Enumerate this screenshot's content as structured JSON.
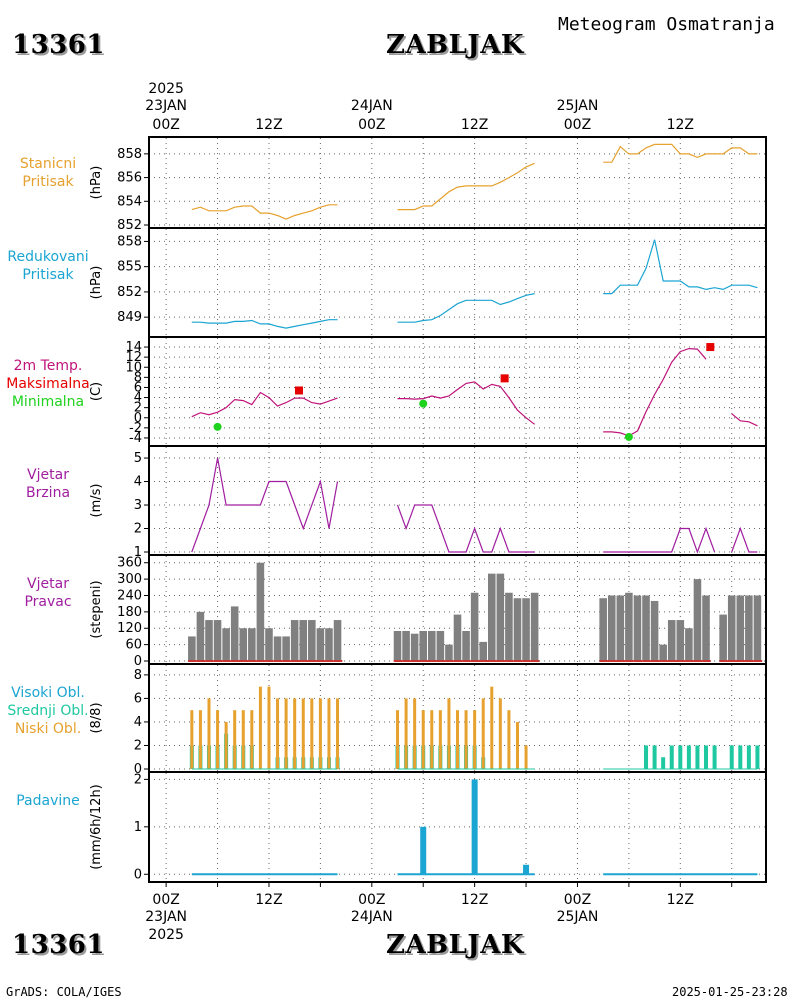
{
  "header": {
    "station_id": "13361",
    "station_name": "ZABLJAK",
    "subtitle": "Meteogram Osmatranja"
  },
  "footer": {
    "credit": "GrADS: COLA/IGES",
    "timestamp": "2025-01-25-23:28"
  },
  "time_axis": {
    "year": "2025",
    "days": [
      "23JAN",
      "24JAN",
      "25JAN"
    ],
    "hour_labels": [
      "00Z",
      "12Z",
      "00Z",
      "12Z",
      "00Z",
      "12Z"
    ],
    "hour_positions": [
      0,
      12,
      24,
      36,
      48,
      60
    ],
    "range_hours": [
      -2,
      70
    ]
  },
  "colors": {
    "station_pressure": "#e6a12e",
    "reduced_pressure": "#1aa5d2",
    "temp_line": "#c0147a",
    "temp_max": "#e60000",
    "temp_min": "#1ed21e",
    "wind": "#a01ea0",
    "direction_bars": "#808080",
    "direction_base": "#cc3333",
    "high_clouds": "#1ec8a0",
    "mid_clouds": "#1ec8a0",
    "low_clouds": "#e6a12e",
    "precip": "#1aa5d2"
  },
  "panel_labels": {
    "station_pressure": [
      "Stanicni",
      "Pritisak"
    ],
    "reduced_pressure": [
      "Redukovani",
      "Pritisak"
    ],
    "temperature": [
      "2m Temp.",
      "Maksimalna",
      "Minimalna"
    ],
    "wind_speed": [
      "Vjetar",
      "Brzina"
    ],
    "wind_dir": [
      "Vjetar",
      "Pravac"
    ],
    "clouds": [
      "Visoki Obl.",
      "Srednji Obl.",
      "Niski Obl."
    ],
    "precip": [
      "Padavine"
    ]
  },
  "chart_data": [
    {
      "type": "line",
      "ylabel": "(hPa)",
      "ylim": [
        852,
        859
      ],
      "yticks": [
        852,
        854,
        856,
        858
      ],
      "grid": true,
      "series": [
        {
          "x": [
            3,
            4,
            5,
            6,
            7,
            8,
            9,
            10,
            11,
            12,
            13,
            14,
            15,
            16,
            17,
            18,
            19,
            20
          ],
          "y": [
            853.3,
            853.5,
            853.2,
            853.2,
            853.2,
            853.5,
            853.6,
            853.6,
            853.0,
            853.0,
            852.8,
            852.5,
            852.8,
            853.0,
            853.2,
            853.5,
            853.7,
            853.7
          ]
        },
        {
          "x": [
            27,
            28,
            29,
            30,
            31,
            32,
            33,
            34,
            35,
            36,
            37,
            38,
            39,
            40,
            41,
            42,
            43
          ],
          "y": [
            853.3,
            853.3,
            853.3,
            853.6,
            853.6,
            854.2,
            854.8,
            855.2,
            855.3,
            855.3,
            855.3,
            855.3,
            855.6,
            856.0,
            856.4,
            856.9,
            857.2
          ]
        },
        {
          "x": [
            51,
            52,
            53,
            54,
            55,
            56,
            57,
            58,
            59,
            60,
            61,
            62,
            63,
            64,
            65,
            66,
            67,
            68,
            69
          ],
          "y": [
            857.3,
            857.3,
            858.6,
            858.0,
            858.0,
            858.5,
            858.8,
            858.8,
            858.8,
            858.0,
            858.0,
            857.7,
            858.0,
            858.0,
            858.0,
            858.5,
            858.5,
            858.0,
            858.0
          ]
        }
      ]
    },
    {
      "type": "line",
      "ylabel": "(hPa)",
      "ylim": [
        847,
        859
      ],
      "yticks": [
        849,
        852,
        855,
        858
      ],
      "grid": true,
      "series": [
        {
          "x": [
            3,
            4,
            5,
            6,
            7,
            8,
            9,
            10,
            11,
            12,
            13,
            14,
            15,
            16,
            17,
            18,
            19,
            20
          ],
          "y": [
            848.4,
            848.4,
            848.3,
            848.3,
            848.3,
            848.5,
            848.5,
            848.6,
            848.2,
            848.2,
            847.9,
            847.7,
            847.9,
            848.1,
            848.3,
            848.5,
            848.7,
            848.7
          ]
        },
        {
          "x": [
            27,
            28,
            29,
            30,
            31,
            32,
            33,
            34,
            35,
            36,
            37,
            38,
            39,
            40,
            41,
            42,
            43
          ],
          "y": [
            848.4,
            848.4,
            848.4,
            848.6,
            848.7,
            849.2,
            849.9,
            850.6,
            851.0,
            851.0,
            851.0,
            851.0,
            850.5,
            850.8,
            851.2,
            851.6,
            851.8
          ]
        },
        {
          "x": [
            51,
            52,
            53,
            54,
            55,
            56,
            57,
            58,
            59,
            60,
            61,
            62,
            63,
            64,
            65,
            66,
            67,
            68,
            69
          ],
          "y": [
            851.8,
            851.8,
            852.8,
            852.8,
            852.8,
            854.8,
            858.2,
            853.3,
            853.3,
            853.3,
            852.6,
            852.6,
            852.3,
            852.5,
            852.3,
            852.8,
            852.8,
            852.8,
            852.5
          ]
        }
      ]
    },
    {
      "type": "line",
      "ylabel": "(C)",
      "ylim": [
        -5,
        15
      ],
      "yticks": [
        -4,
        -2,
        0,
        2,
        4,
        6,
        8,
        10,
        12,
        14
      ],
      "grid": true,
      "series": [
        {
          "name": "2m Temp.",
          "x": [
            3,
            4,
            5,
            6,
            7,
            8,
            9,
            10,
            11,
            12,
            13,
            14,
            15,
            16,
            17,
            18,
            19,
            20
          ],
          "y": [
            0.2,
            1.0,
            0.6,
            1.1,
            2.0,
            3.6,
            3.4,
            2.6,
            5.0,
            4.0,
            2.3,
            3.0,
            3.9,
            3.9,
            3.0,
            2.7,
            3.3,
            3.9
          ]
        },
        {
          "name": "2m Temp.",
          "x": [
            27,
            28,
            29,
            30,
            31,
            32,
            33,
            34,
            35,
            36,
            37,
            38,
            39,
            40,
            41,
            42,
            43
          ],
          "y": [
            3.8,
            3.8,
            3.7,
            3.8,
            4.3,
            3.9,
            4.3,
            5.6,
            6.8,
            7.1,
            5.7,
            6.6,
            6.2,
            4.0,
            1.5,
            0.0,
            -1.3
          ]
        },
        {
          "name": "2m Temp.",
          "x": [
            51,
            52,
            53,
            54,
            55,
            56,
            57,
            58,
            59,
            60,
            61,
            62,
            63,
            64,
            65,
            66,
            67,
            68,
            69
          ],
          "y": [
            -2.8,
            -2.8,
            -3.0,
            -3.6,
            -2.6,
            1.2,
            4.6,
            7.6,
            11.0,
            13.1,
            13.7,
            13.6,
            11.6,
            null,
            null,
            0.8,
            -0.6,
            -0.8,
            -1.6
          ]
        }
      ],
      "max_points": {
        "x": [
          15.5,
          39.5,
          63.5
        ],
        "y": [
          5.4,
          7.8,
          14.0
        ]
      },
      "min_points": {
        "x": [
          6,
          30,
          54
        ],
        "y": [
          -1.8,
          2.8,
          -3.8
        ]
      }
    },
    {
      "type": "line",
      "ylabel": "(m/s)",
      "ylim": [
        1,
        5.3
      ],
      "yticks": [
        1,
        2,
        3,
        4,
        5
      ],
      "grid": true,
      "series": [
        {
          "x": [
            3,
            4,
            5,
            6,
            7,
            8,
            9,
            10,
            11,
            12,
            13,
            14,
            15,
            16,
            17,
            18,
            19,
            20
          ],
          "y": [
            1,
            2,
            3,
            5,
            3,
            3,
            3,
            3,
            3,
            4,
            4,
            4,
            3,
            2,
            3,
            4,
            2,
            4
          ]
        },
        {
          "x": [
            27,
            28,
            29,
            30,
            31,
            32,
            33,
            34,
            35,
            36,
            37,
            38,
            39,
            40,
            41,
            42,
            43
          ],
          "y": [
            3,
            2,
            3,
            3,
            3,
            2,
            1,
            1,
            1,
            2,
            1,
            1,
            2,
            1,
            1,
            1,
            1
          ]
        },
        {
          "x": [
            51,
            52,
            53,
            54,
            55,
            56,
            57,
            58,
            59,
            60,
            61,
            62,
            63,
            64,
            65,
            66,
            67,
            68,
            69
          ],
          "y": [
            1,
            1,
            1,
            1,
            1,
            1,
            1,
            1,
            1,
            2,
            2,
            1,
            2,
            1,
            null,
            1,
            2,
            1,
            1
          ]
        }
      ]
    },
    {
      "type": "bar",
      "ylabel": "(stepeni)",
      "ylim": [
        0,
        370
      ],
      "yticks": [
        0,
        60,
        120,
        180,
        240,
        300,
        360
      ],
      "grid": true,
      "x": [
        3,
        4,
        5,
        6,
        7,
        8,
        9,
        10,
        11,
        12,
        13,
        14,
        15,
        16,
        17,
        18,
        19,
        20,
        27,
        28,
        29,
        30,
        31,
        32,
        33,
        34,
        35,
        36,
        37,
        38,
        39,
        40,
        41,
        42,
        43,
        51,
        52,
        53,
        54,
        55,
        56,
        57,
        58,
        59,
        60,
        61,
        62,
        63,
        65,
        66,
        67,
        68,
        69
      ],
      "values": [
        90,
        180,
        150,
        150,
        120,
        200,
        120,
        120,
        360,
        120,
        90,
        90,
        150,
        150,
        150,
        120,
        120,
        150,
        110,
        110,
        100,
        110,
        110,
        110,
        60,
        170,
        110,
        250,
        70,
        320,
        320,
        250,
        230,
        230,
        250,
        230,
        240,
        240,
        250,
        240,
        240,
        220,
        60,
        150,
        150,
        120,
        300,
        240,
        170,
        240,
        240,
        240,
        240
      ]
    },
    {
      "type": "bar",
      "ylabel": "(8/8)",
      "ylim": [
        0,
        8.5
      ],
      "yticks": [
        0,
        2,
        4,
        6,
        8
      ],
      "grid": true,
      "series": [
        {
          "name": "Niski Obl.",
          "x": [
            3,
            4,
            5,
            6,
            7,
            8,
            9,
            10,
            11,
            12,
            13,
            14,
            15,
            16,
            17,
            18,
            19,
            20,
            27,
            28,
            29,
            30,
            31,
            32,
            33,
            34,
            35,
            36,
            37,
            38,
            39,
            40,
            41,
            42
          ],
          "values": [
            5,
            5,
            6,
            5,
            4,
            5,
            5,
            5,
            7,
            7,
            6,
            6,
            6,
            6,
            6,
            6,
            6,
            6,
            5,
            6,
            6,
            5,
            5,
            5,
            6,
            5,
            5,
            5,
            6,
            7,
            6,
            5,
            4,
            2
          ]
        },
        {
          "name": "Visoki Obl.",
          "x": [
            3,
            4,
            5,
            6,
            7,
            8,
            9,
            10,
            11,
            12,
            13,
            14,
            15,
            16,
            17,
            18,
            19,
            20,
            27,
            28,
            29,
            30,
            31,
            32,
            33,
            34,
            35,
            36,
            37,
            56,
            57,
            58,
            59,
            60,
            61,
            62,
            63,
            64,
            66,
            67,
            68,
            69
          ],
          "values": [
            2,
            2,
            2,
            2,
            3,
            2,
            2,
            2,
            0,
            0,
            1,
            1,
            1,
            1,
            1,
            1,
            1,
            1,
            2,
            2,
            2,
            2,
            2,
            2,
            2,
            2,
            2,
            2,
            1,
            2,
            2,
            1,
            2,
            2,
            2,
            2,
            2,
            2,
            2,
            2,
            2,
            2
          ]
        }
      ]
    },
    {
      "type": "bar",
      "ylabel": "(mm/6h/12h)",
      "ylim": [
        -0.1,
        2.05
      ],
      "yticks": [
        0,
        1,
        2
      ],
      "grid": true,
      "x": [
        30,
        36,
        42
      ],
      "values": [
        1.0,
        2.0,
        0.2
      ]
    }
  ]
}
